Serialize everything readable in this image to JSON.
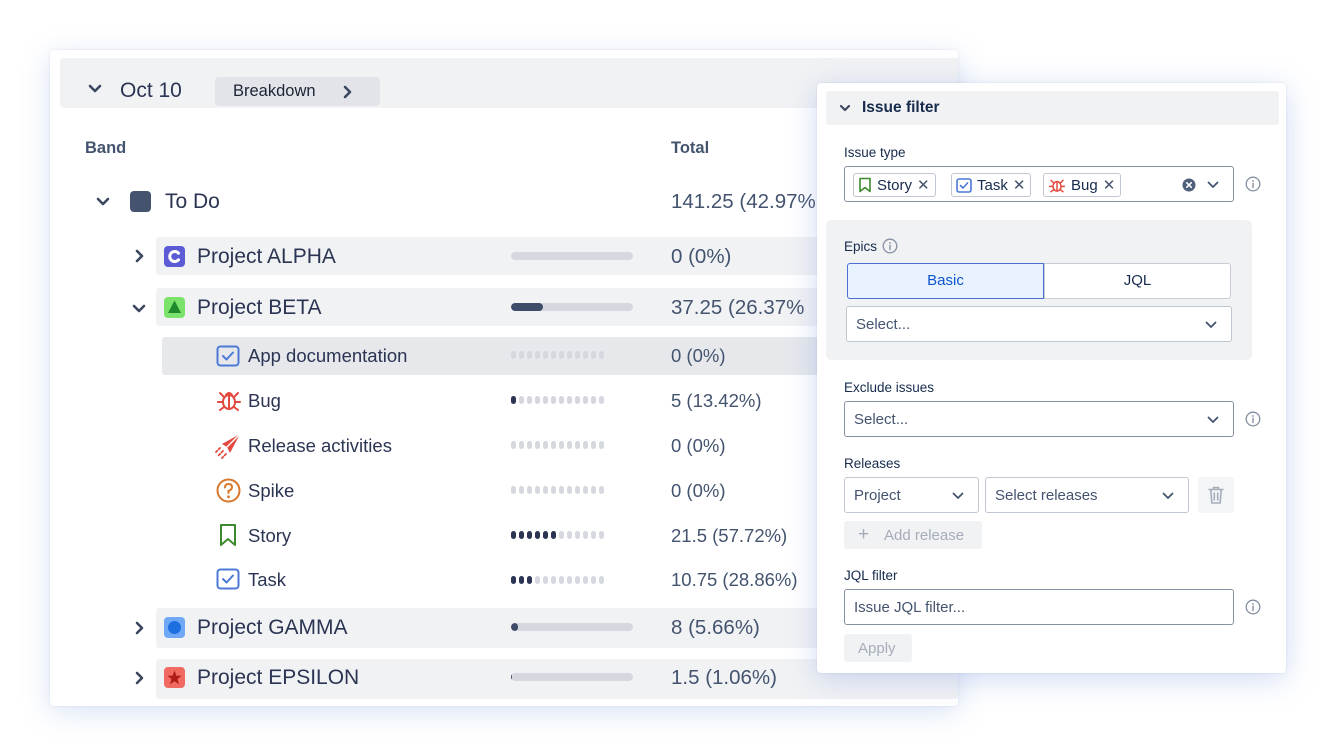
{
  "breakdown": {
    "date": "Oct 10",
    "breakdown_label": "Breakdown",
    "columns": {
      "band": "Band",
      "total": "Total"
    },
    "group": {
      "name": "To Do",
      "total": "141.25 (42.97%",
      "color": "#44546f"
    },
    "projects": [
      {
        "name": "Project ALPHA",
        "total": "0 (0%)",
        "icon_color": "#5b5bd6",
        "icon": "c-logo-icon",
        "progress": 0
      },
      {
        "name": "Project BETA",
        "total": "37.25 (26.37%",
        "icon_color": "#4bce97",
        "icon": "triangle-icon",
        "progress": 0.26
      },
      {
        "name": "Project GAMMA",
        "total": "8 (5.66%)",
        "icon_color": "#388bff",
        "icon": "circle-icon",
        "progress": 0.06
      },
      {
        "name": "Project EPSILON",
        "total": "1.5 (1.06%)",
        "icon_color": "#e2483d",
        "icon": "star-icon",
        "progress": 0.01
      }
    ],
    "issue_types": [
      {
        "name": "App documentation",
        "total": "0 (0%)",
        "icon": "checkbox-icon",
        "filled_dots": 0
      },
      {
        "name": "Bug",
        "total": "5 (13.42%)",
        "icon": "bug-icon",
        "filled_dots": 1
      },
      {
        "name": "Release activities",
        "total": "0 (0%)",
        "icon": "paper-plane-icon",
        "filled_dots": 0
      },
      {
        "name": "Spike",
        "total": "0 (0%)",
        "icon": "question-icon",
        "filled_dots": 0
      },
      {
        "name": "Story",
        "total": "21.5 (57.72%)",
        "icon": "bookmark-icon",
        "filled_dots": 6
      },
      {
        "name": "Task",
        "total": "10.75 (28.86%)",
        "icon": "checkbox-icon",
        "filled_dots": 3
      }
    ]
  },
  "filter": {
    "title": "Issue filter",
    "issue_type_label": "Issue type",
    "tags": [
      {
        "label": "Story",
        "icon": "bookmark-icon"
      },
      {
        "label": "Task",
        "icon": "checkbox-icon"
      },
      {
        "label": "Bug",
        "icon": "bug-icon"
      }
    ],
    "epics_label": "Epics",
    "epics_basic": "Basic",
    "epics_jql": "JQL",
    "epics_placeholder": "Select...",
    "exclude_label": "Exclude issues",
    "exclude_placeholder": "Select...",
    "releases_label": "Releases",
    "releases_project": "Project",
    "releases_select": "Select releases",
    "add_release": "Add release",
    "jql_label": "JQL filter",
    "jql_placeholder": "Issue JQL filter...",
    "apply": "Apply"
  },
  "colors": {
    "accent": "#0c56d0",
    "dark": "#2b3553",
    "muted": "#44546f"
  }
}
